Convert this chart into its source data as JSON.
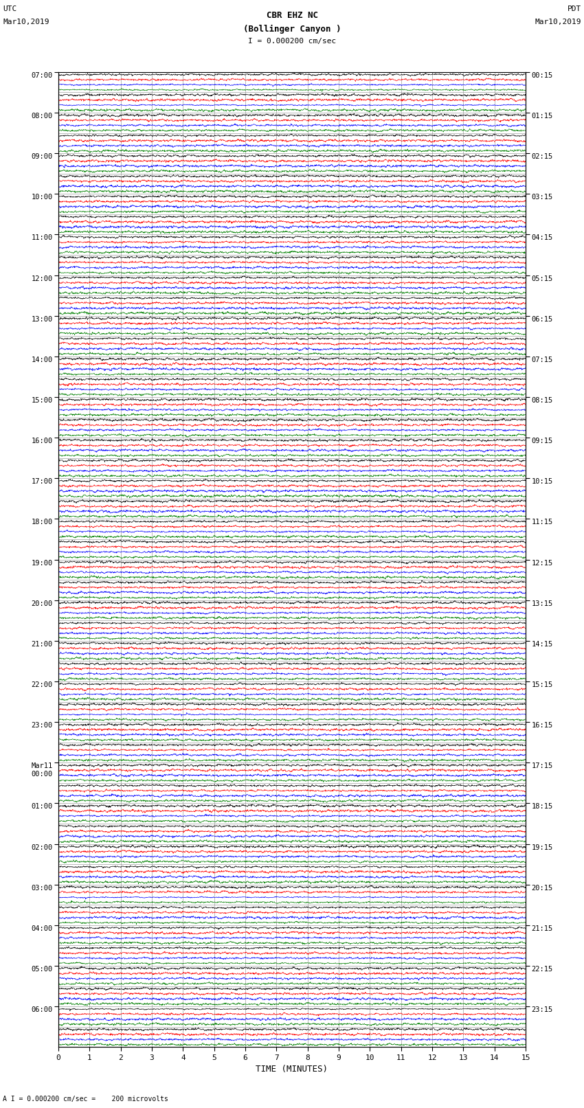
{
  "title_line1": "CBR EHZ NC",
  "title_line2": "(Bollinger Canyon )",
  "scale_label": "I = 0.000200 cm/sec",
  "bottom_label": "A I = 0.000200 cm/sec =    200 microvolts",
  "xlabel": "TIME (MINUTES)",
  "left_header_line1": "UTC",
  "left_header_line2": "Mar10,2019",
  "right_header_line1": "PDT",
  "right_header_line2": "Mar10,2019",
  "num_rows": 48,
  "trace_colors": [
    "black",
    "red",
    "blue",
    "green"
  ],
  "traces_per_row": 4,
  "background_color": "white",
  "fig_width": 8.5,
  "fig_height": 16.13,
  "dpi": 100,
  "xmin": 0,
  "xmax": 15,
  "xticks": [
    0,
    1,
    2,
    3,
    4,
    5,
    6,
    7,
    8,
    9,
    10,
    11,
    12,
    13,
    14,
    15
  ],
  "left_utc_times": [
    "07:00",
    "08:00",
    "09:00",
    "10:00",
    "11:00",
    "12:00",
    "13:00",
    "14:00",
    "15:00",
    "16:00",
    "17:00",
    "18:00",
    "19:00",
    "20:00",
    "21:00",
    "22:00",
    "23:00",
    "Mar11\n00:00",
    "01:00",
    "02:00",
    "03:00",
    "04:00",
    "05:00",
    "06:00"
  ],
  "right_pdt_times": [
    "00:15",
    "01:15",
    "02:15",
    "03:15",
    "04:15",
    "05:15",
    "06:15",
    "07:15",
    "08:15",
    "09:15",
    "10:15",
    "11:15",
    "12:15",
    "13:15",
    "14:15",
    "15:15",
    "16:15",
    "17:15",
    "18:15",
    "19:15",
    "20:15",
    "21:15",
    "22:15",
    "23:15"
  ],
  "seed": 42,
  "high_activity_rows": [
    0,
    1,
    40,
    41,
    42,
    43
  ],
  "medium_activity_rows": [
    7,
    8,
    16,
    17,
    22,
    30,
    31
  ]
}
